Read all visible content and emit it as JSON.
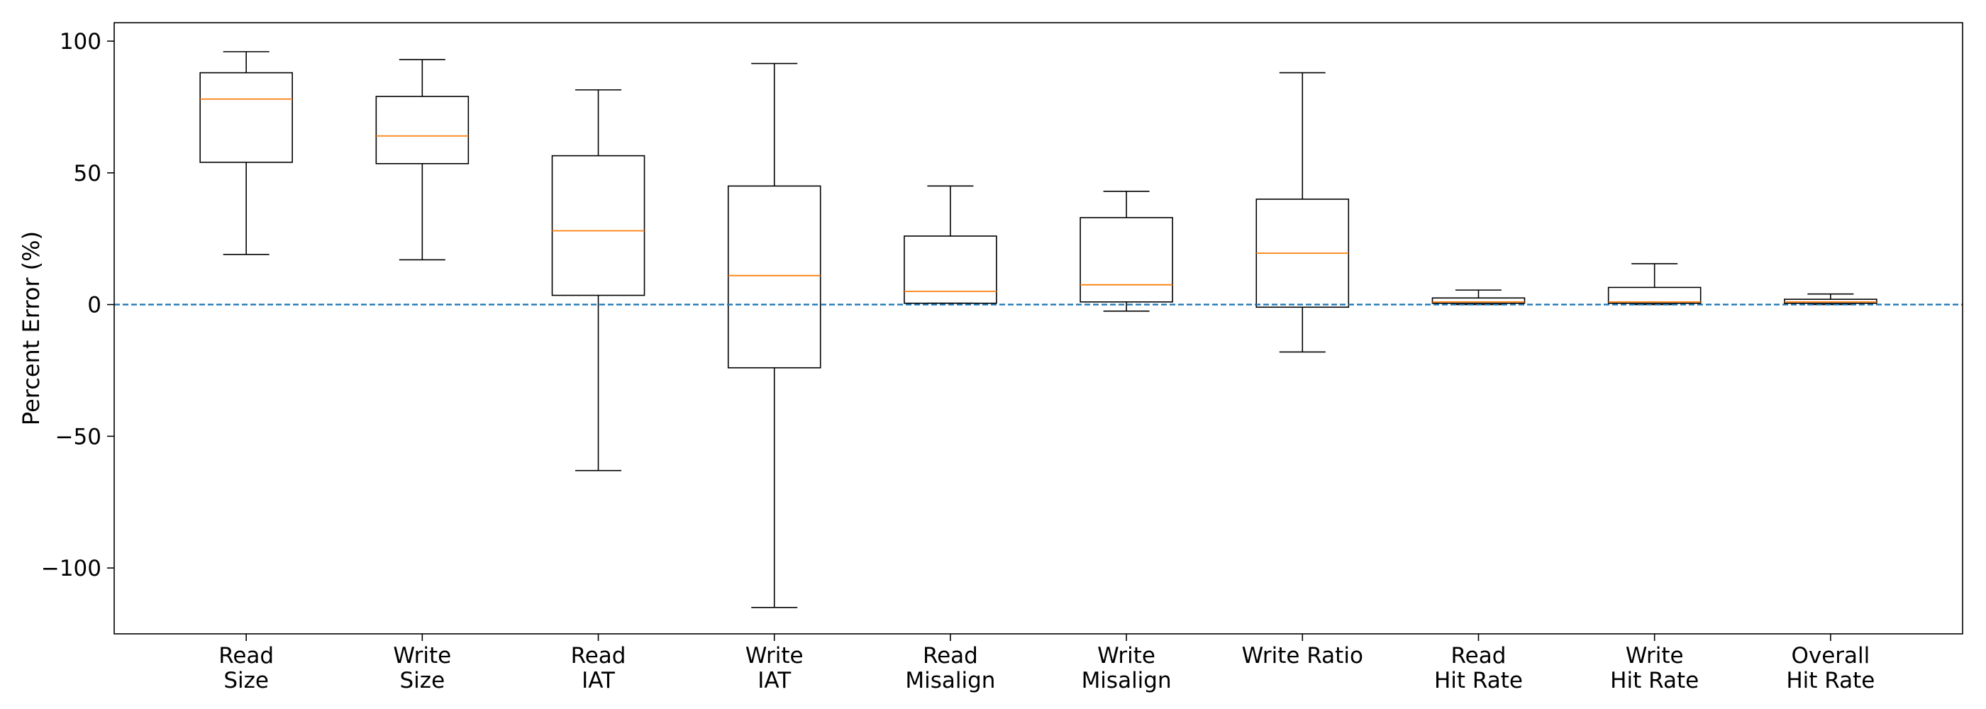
{
  "chart_data": {
    "type": "box",
    "title": "",
    "xlabel": "",
    "ylabel": "Percent Error (%)",
    "ylim": [
      -125,
      107
    ],
    "yticks": [
      100,
      50,
      0,
      -50,
      -100
    ],
    "ytick_labels": [
      "100",
      "50",
      "0",
      "−50",
      "−100"
    ],
    "reference_line": {
      "y": 0,
      "style": "dashed",
      "color": "#1f77b4"
    },
    "box_color": "#000000",
    "median_color": "#ff7f0e",
    "grid": false,
    "categories": [
      {
        "lines": [
          "Read",
          "Size"
        ],
        "whislo": 19,
        "q1": 54,
        "med": 78,
        "q3": 88,
        "whishi": 96
      },
      {
        "lines": [
          "Write",
          "Size"
        ],
        "whislo": 17,
        "q1": 53.5,
        "med": 64,
        "q3": 79,
        "whishi": 93
      },
      {
        "lines": [
          "Read",
          "IAT"
        ],
        "whislo": -63,
        "q1": 3.5,
        "med": 28,
        "q3": 56.5,
        "whishi": 81.5
      },
      {
        "lines": [
          "Write",
          "IAT"
        ],
        "whislo": -115,
        "q1": -24,
        "med": 11,
        "q3": 45,
        "whishi": 91.5
      },
      {
        "lines": [
          "Read",
          "Misalign"
        ],
        "whislo": 0.5,
        "q1": 0.5,
        "med": 5,
        "q3": 26,
        "whishi": 45
      },
      {
        "lines": [
          "Write",
          "Misalign"
        ],
        "whislo": -2.5,
        "q1": 1,
        "med": 7.5,
        "q3": 33,
        "whishi": 43
      },
      {
        "lines": [
          "Write Ratio"
        ],
        "whislo": -18,
        "q1": -1,
        "med": 19.5,
        "q3": 40,
        "whishi": 88
      },
      {
        "lines": [
          "Read",
          "Hit Rate"
        ],
        "whislo": 0,
        "q1": 0.5,
        "med": 1,
        "q3": 2.5,
        "whishi": 5.5
      },
      {
        "lines": [
          "Write",
          "Hit Rate"
        ],
        "whislo": 0,
        "q1": 0.5,
        "med": 1,
        "q3": 6.5,
        "whishi": 15.5
      },
      {
        "lines": [
          "Overall",
          "Hit Rate"
        ],
        "whislo": 0,
        "q1": 0.5,
        "med": 1,
        "q3": 2,
        "whishi": 4
      }
    ]
  }
}
